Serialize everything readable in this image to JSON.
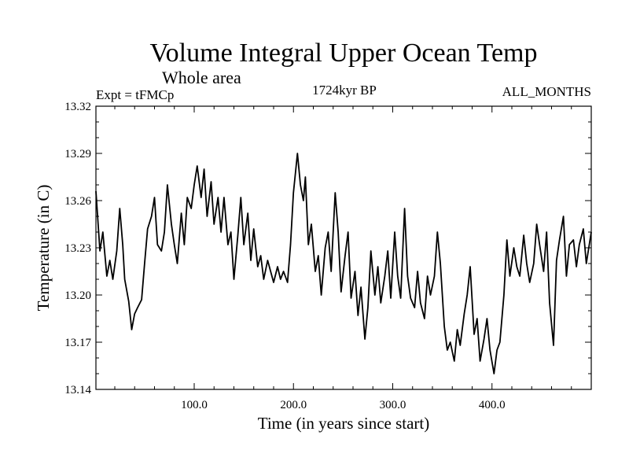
{
  "chart_data": {
    "type": "line",
    "title": "Volume Integral Upper Ocean Temp",
    "subtitle": "Whole area",
    "experiment_label": "Expt = tFMCp",
    "period_label": "1724kyr BP",
    "months_label": "ALL_MONTHS",
    "xlabel": "Time (in years since start)",
    "ylabel": "Temperature (in C)",
    "xlim": [
      1,
      500
    ],
    "ylim": [
      13.14,
      13.32
    ],
    "xticks": [
      100,
      200,
      300,
      400
    ],
    "xtick_labels": [
      "100.0",
      "200.0",
      "300.0",
      "400.0"
    ],
    "yticks": [
      13.14,
      13.17,
      13.2,
      13.23,
      13.26,
      13.29,
      13.32
    ],
    "ytick_labels": [
      "13.14",
      "13.17",
      "13.20",
      "13.23",
      "13.26",
      "13.29",
      "13.32"
    ],
    "grid": false,
    "series": [
      {
        "name": "Volume Integral Upper Ocean Temp",
        "x": [
          1,
          5,
          8,
          12,
          15,
          18,
          22,
          25,
          28,
          30,
          34,
          37,
          40,
          43,
          47,
          50,
          53,
          57,
          60,
          63,
          67,
          70,
          73,
          77,
          80,
          83,
          87,
          90,
          93,
          97,
          100,
          103,
          107,
          110,
          113,
          117,
          120,
          124,
          127,
          130,
          134,
          137,
          140,
          144,
          147,
          150,
          154,
          157,
          160,
          164,
          167,
          170,
          174,
          177,
          180,
          184,
          187,
          190,
          194,
          197,
          200,
          204,
          207,
          210,
          212,
          215,
          218,
          222,
          225,
          228,
          232,
          235,
          238,
          242,
          245,
          248,
          252,
          255,
          258,
          262,
          265,
          268,
          272,
          275,
          278,
          282,
          285,
          288,
          292,
          295,
          298,
          302,
          305,
          308,
          312,
          315,
          318,
          322,
          325,
          328,
          332,
          335,
          338,
          342,
          345,
          348,
          352,
          355,
          358,
          362,
          365,
          368,
          372,
          375,
          378,
          382,
          385,
          388,
          392,
          395,
          398,
          402,
          405,
          408,
          412,
          415,
          418,
          422,
          425,
          428,
          432,
          435,
          438,
          442,
          445,
          448,
          452,
          455,
          458,
          462,
          465,
          468,
          472,
          475,
          478,
          482,
          485,
          488,
          492,
          495,
          500
        ],
        "values": [
          13.266,
          13.228,
          13.24,
          13.212,
          13.222,
          13.21,
          13.228,
          13.255,
          13.232,
          13.21,
          13.196,
          13.178,
          13.188,
          13.192,
          13.197,
          13.22,
          13.242,
          13.25,
          13.262,
          13.232,
          13.228,
          13.24,
          13.27,
          13.245,
          13.232,
          13.22,
          13.252,
          13.232,
          13.262,
          13.255,
          13.27,
          13.282,
          13.262,
          13.28,
          13.25,
          13.272,
          13.245,
          13.262,
          13.24,
          13.262,
          13.232,
          13.24,
          13.21,
          13.238,
          13.262,
          13.232,
          13.252,
          13.222,
          13.242,
          13.218,
          13.225,
          13.21,
          13.222,
          13.215,
          13.208,
          13.218,
          13.21,
          13.215,
          13.208,
          13.232,
          13.265,
          13.29,
          13.27,
          13.26,
          13.275,
          13.232,
          13.245,
          13.215,
          13.225,
          13.2,
          13.23,
          13.24,
          13.215,
          13.265,
          13.24,
          13.202,
          13.225,
          13.24,
          13.198,
          13.215,
          13.187,
          13.205,
          13.172,
          13.192,
          13.228,
          13.2,
          13.218,
          13.195,
          13.212,
          13.228,
          13.198,
          13.24,
          13.212,
          13.198,
          13.255,
          13.212,
          13.198,
          13.192,
          13.215,
          13.195,
          13.185,
          13.212,
          13.2,
          13.212,
          13.24,
          13.22,
          13.18,
          13.165,
          13.17,
          13.158,
          13.178,
          13.168,
          13.188,
          13.2,
          13.218,
          13.175,
          13.185,
          13.158,
          13.172,
          13.185,
          13.165,
          13.15,
          13.165,
          13.17,
          13.2,
          13.235,
          13.212,
          13.23,
          13.218,
          13.212,
          13.238,
          13.22,
          13.208,
          13.22,
          13.245,
          13.232,
          13.215,
          13.24,
          13.195,
          13.168,
          13.222,
          13.235,
          13.25,
          13.212,
          13.232,
          13.235,
          13.218,
          13.232,
          13.242,
          13.22,
          13.24
        ]
      }
    ]
  }
}
